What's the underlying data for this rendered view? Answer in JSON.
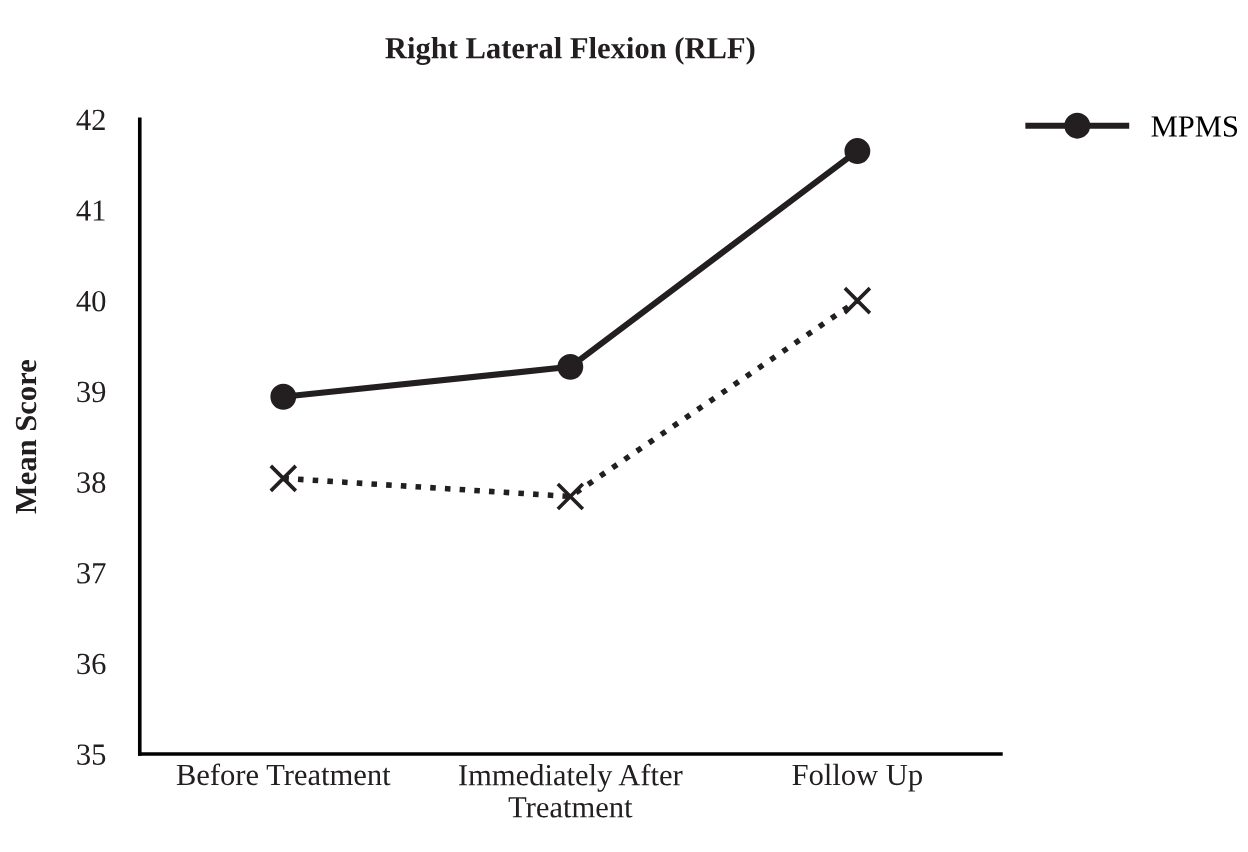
{
  "chart_data": {
    "type": "line",
    "title": "Right Lateral Flexion (RLF)",
    "ylabel": "Mean Score",
    "categories": [
      "Before Treatment",
      "Immediately After\nTreatment",
      "Follow Up"
    ],
    "series": [
      {
        "name": "MPMS",
        "color": "#231f20",
        "values": [
          38.94,
          39.27,
          41.65
        ],
        "marker": "circle",
        "line_style": "solid"
      },
      {
        "color": "#231f20",
        "values": [
          38.04,
          37.84,
          40.0
        ],
        "marker": "cross",
        "line_style": "dotted"
      }
    ],
    "ylim": [
      35,
      42
    ],
    "yticks": [
      35,
      36,
      37,
      38,
      39,
      40,
      41,
      42
    ],
    "grid": false,
    "legend": "top right"
  }
}
